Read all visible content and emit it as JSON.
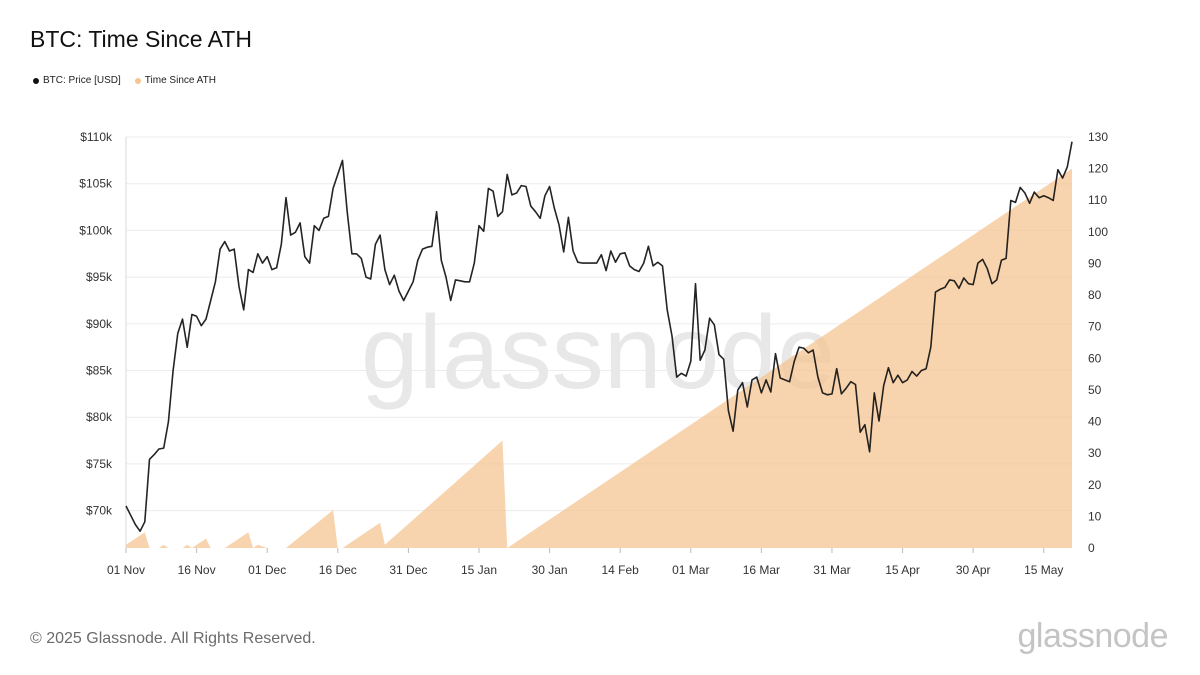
{
  "page": {
    "title": "BTC: Time Since ATH",
    "footer": "© 2025 Glassnode. All Rights Reserved.",
    "brand": "glassnode",
    "watermark": "glassnode"
  },
  "legend": [
    {
      "label": "BTC: Price [USD]",
      "color": "#111111"
    },
    {
      "label": "Time Since ATH",
      "color": "#f5c48f"
    }
  ],
  "chart_data": {
    "type": "line",
    "title": "BTC: Time Since ATH",
    "x_start": "2024-11-01",
    "x_end": "2025-05-21",
    "x_tick_labels": [
      "01 Nov",
      "16 Nov",
      "01 Dec",
      "16 Dec",
      "31 Dec",
      "15 Jan",
      "30 Jan",
      "14 Feb",
      "01 Mar",
      "16 Mar",
      "31 Mar",
      "15 Apr",
      "30 Apr",
      "15 May"
    ],
    "x_tick_dates": [
      "2024-11-01",
      "2024-11-16",
      "2024-12-01",
      "2024-12-16",
      "2024-12-31",
      "2025-01-15",
      "2025-01-30",
      "2025-02-14",
      "2025-03-01",
      "2025-03-16",
      "2025-03-31",
      "2025-04-15",
      "2025-04-30",
      "2025-05-15"
    ],
    "y_left": {
      "label": "",
      "min": 66000,
      "max": 110000,
      "ticks": [
        70000,
        75000,
        80000,
        85000,
        90000,
        95000,
        100000,
        105000,
        110000
      ],
      "tick_labels": [
        "$70k",
        "$75k",
        "$80k",
        "$85k",
        "$90k",
        "$95k",
        "$100k",
        "$105k",
        "$110k"
      ]
    },
    "y_right": {
      "label": "",
      "min": 0,
      "max": 130,
      "ticks": [
        0,
        10,
        20,
        30,
        40,
        50,
        60,
        70,
        80,
        90,
        100,
        110,
        120,
        130
      ],
      "tick_labels": [
        "0",
        "10",
        "20",
        "30",
        "40",
        "50",
        "60",
        "70",
        "80",
        "90",
        "100",
        "110",
        "120",
        "130"
      ]
    },
    "grid": true,
    "legend_position": "top-left",
    "series": [
      {
        "name": "BTC: Price [USD]",
        "axis": "left",
        "color": "#111111",
        "points": [
          [
            "2024-11-01",
            70500
          ],
          [
            "2024-11-02",
            69500
          ],
          [
            "2024-11-03",
            68500
          ],
          [
            "2024-11-04",
            67800
          ],
          [
            "2024-11-05",
            68800
          ],
          [
            "2024-11-06",
            75500
          ],
          [
            "2024-11-07",
            76000
          ],
          [
            "2024-11-08",
            76600
          ],
          [
            "2024-11-09",
            76700
          ],
          [
            "2024-11-10",
            79500
          ],
          [
            "2024-11-11",
            85000
          ],
          [
            "2024-11-12",
            89000
          ],
          [
            "2024-11-13",
            90500
          ],
          [
            "2024-11-14",
            87500
          ],
          [
            "2024-11-15",
            91000
          ],
          [
            "2024-11-16",
            90800
          ],
          [
            "2024-11-17",
            89800
          ],
          [
            "2024-11-18",
            90500
          ],
          [
            "2024-11-19",
            92500
          ],
          [
            "2024-11-20",
            94500
          ],
          [
            "2024-11-21",
            98000
          ],
          [
            "2024-11-22",
            98800
          ],
          [
            "2024-11-23",
            97800
          ],
          [
            "2024-11-24",
            98000
          ],
          [
            "2024-11-25",
            94000
          ],
          [
            "2024-11-26",
            91500
          ],
          [
            "2024-11-27",
            95800
          ],
          [
            "2024-11-28",
            95500
          ],
          [
            "2024-11-29",
            97500
          ],
          [
            "2024-11-30",
            96500
          ],
          [
            "2024-12-01",
            97200
          ],
          [
            "2024-12-02",
            95800
          ],
          [
            "2024-12-03",
            96000
          ],
          [
            "2024-12-04",
            98500
          ],
          [
            "2024-12-05",
            103500
          ],
          [
            "2024-12-06",
            99500
          ],
          [
            "2024-12-07",
            99800
          ],
          [
            "2024-12-08",
            100800
          ],
          [
            "2024-12-09",
            97200
          ],
          [
            "2024-12-10",
            96500
          ],
          [
            "2024-12-11",
            100500
          ],
          [
            "2024-12-12",
            100000
          ],
          [
            "2024-12-13",
            101300
          ],
          [
            "2024-12-14",
            101500
          ],
          [
            "2024-12-15",
            104500
          ],
          [
            "2024-12-16",
            106000
          ],
          [
            "2024-12-17",
            107500
          ],
          [
            "2024-12-18",
            102000
          ],
          [
            "2024-12-19",
            97500
          ],
          [
            "2024-12-20",
            97500
          ],
          [
            "2024-12-21",
            97000
          ],
          [
            "2024-12-22",
            95000
          ],
          [
            "2024-12-23",
            94800
          ],
          [
            "2024-12-24",
            98500
          ],
          [
            "2024-12-25",
            99500
          ],
          [
            "2024-12-26",
            95800
          ],
          [
            "2024-12-27",
            94200
          ],
          [
            "2024-12-28",
            95200
          ],
          [
            "2024-12-29",
            93500
          ],
          [
            "2024-12-30",
            92500
          ],
          [
            "2024-12-31",
            93500
          ],
          [
            "2025-01-01",
            94500
          ],
          [
            "2025-01-02",
            96800
          ],
          [
            "2025-01-03",
            98000
          ],
          [
            "2025-01-04",
            98200
          ],
          [
            "2025-01-05",
            98300
          ],
          [
            "2025-01-06",
            102000
          ],
          [
            "2025-01-07",
            96800
          ],
          [
            "2025-01-08",
            95000
          ],
          [
            "2025-01-09",
            92500
          ],
          [
            "2025-01-10",
            94700
          ],
          [
            "2025-01-11",
            94600
          ],
          [
            "2025-01-12",
            94500
          ],
          [
            "2025-01-13",
            94500
          ],
          [
            "2025-01-14",
            96500
          ],
          [
            "2025-01-15",
            100500
          ],
          [
            "2025-01-16",
            99900
          ],
          [
            "2025-01-17",
            104500
          ],
          [
            "2025-01-18",
            104200
          ],
          [
            "2025-01-19",
            101500
          ],
          [
            "2025-01-20",
            102000
          ],
          [
            "2025-01-21",
            106000
          ],
          [
            "2025-01-22",
            103800
          ],
          [
            "2025-01-23",
            104000
          ],
          [
            "2025-01-24",
            104800
          ],
          [
            "2025-01-25",
            104700
          ],
          [
            "2025-01-26",
            102600
          ],
          [
            "2025-01-27",
            102000
          ],
          [
            "2025-01-28",
            101300
          ],
          [
            "2025-01-29",
            103700
          ],
          [
            "2025-01-30",
            104700
          ],
          [
            "2025-01-31",
            102400
          ],
          [
            "2025-02-01",
            100600
          ],
          [
            "2025-02-02",
            97700
          ],
          [
            "2025-02-03",
            101400
          ],
          [
            "2025-02-04",
            97800
          ],
          [
            "2025-02-05",
            96600
          ],
          [
            "2025-02-06",
            96500
          ],
          [
            "2025-02-07",
            96500
          ],
          [
            "2025-02-08",
            96500
          ],
          [
            "2025-02-09",
            96500
          ],
          [
            "2025-02-10",
            97400
          ],
          [
            "2025-02-11",
            95700
          ],
          [
            "2025-02-12",
            97800
          ],
          [
            "2025-02-13",
            96600
          ],
          [
            "2025-02-14",
            97500
          ],
          [
            "2025-02-15",
            97600
          ],
          [
            "2025-02-16",
            96200
          ],
          [
            "2025-02-17",
            95800
          ],
          [
            "2025-02-18",
            95600
          ],
          [
            "2025-02-19",
            96500
          ],
          [
            "2025-02-20",
            98300
          ],
          [
            "2025-02-21",
            96200
          ],
          [
            "2025-02-22",
            96600
          ],
          [
            "2025-02-23",
            96200
          ],
          [
            "2025-02-24",
            91500
          ],
          [
            "2025-02-25",
            88700
          ],
          [
            "2025-02-26",
            84300
          ],
          [
            "2025-02-27",
            84700
          ],
          [
            "2025-02-28",
            84400
          ],
          [
            "2025-03-01",
            86000
          ],
          [
            "2025-03-02",
            94300
          ],
          [
            "2025-03-03",
            86100
          ],
          [
            "2025-03-04",
            87200
          ],
          [
            "2025-03-05",
            90600
          ],
          [
            "2025-03-06",
            89900
          ],
          [
            "2025-03-07",
            86700
          ],
          [
            "2025-03-08",
            86200
          ],
          [
            "2025-03-09",
            80700
          ],
          [
            "2025-03-10",
            78500
          ],
          [
            "2025-03-11",
            82900
          ],
          [
            "2025-03-12",
            83700
          ],
          [
            "2025-03-13",
            81100
          ],
          [
            "2025-03-14",
            84000
          ],
          [
            "2025-03-15",
            84300
          ],
          [
            "2025-03-16",
            82600
          ],
          [
            "2025-03-17",
            84000
          ],
          [
            "2025-03-18",
            82700
          ],
          [
            "2025-03-19",
            86800
          ],
          [
            "2025-03-20",
            84200
          ],
          [
            "2025-03-21",
            84000
          ],
          [
            "2025-03-22",
            83800
          ],
          [
            "2025-03-23",
            86000
          ],
          [
            "2025-03-24",
            87500
          ],
          [
            "2025-03-25",
            87400
          ],
          [
            "2025-03-26",
            86900
          ],
          [
            "2025-03-27",
            87200
          ],
          [
            "2025-03-28",
            84300
          ],
          [
            "2025-03-29",
            82600
          ],
          [
            "2025-03-30",
            82400
          ],
          [
            "2025-03-31",
            82500
          ],
          [
            "2025-04-01",
            85200
          ],
          [
            "2025-04-02",
            82500
          ],
          [
            "2025-04-03",
            83100
          ],
          [
            "2025-04-04",
            83800
          ],
          [
            "2025-04-05",
            83500
          ],
          [
            "2025-04-06",
            78400
          ],
          [
            "2025-04-07",
            79200
          ],
          [
            "2025-04-08",
            76300
          ],
          [
            "2025-04-09",
            82600
          ],
          [
            "2025-04-10",
            79600
          ],
          [
            "2025-04-11",
            83400
          ],
          [
            "2025-04-12",
            85300
          ],
          [
            "2025-04-13",
            83700
          ],
          [
            "2025-04-14",
            84500
          ],
          [
            "2025-04-15",
            83700
          ],
          [
            "2025-04-16",
            84000
          ],
          [
            "2025-04-17",
            84900
          ],
          [
            "2025-04-18",
            84400
          ],
          [
            "2025-04-19",
            85000
          ],
          [
            "2025-04-20",
            85200
          ],
          [
            "2025-04-21",
            87500
          ],
          [
            "2025-04-22",
            93400
          ],
          [
            "2025-04-23",
            93700
          ],
          [
            "2025-04-24",
            93900
          ],
          [
            "2025-04-25",
            94700
          ],
          [
            "2025-04-26",
            94600
          ],
          [
            "2025-04-27",
            93800
          ],
          [
            "2025-04-28",
            94900
          ],
          [
            "2025-04-29",
            94300
          ],
          [
            "2025-04-30",
            94200
          ],
          [
            "2025-05-01",
            96500
          ],
          [
            "2025-05-02",
            96900
          ],
          [
            "2025-05-03",
            95900
          ],
          [
            "2025-05-04",
            94300
          ],
          [
            "2025-05-05",
            94700
          ],
          [
            "2025-05-06",
            96800
          ],
          [
            "2025-05-07",
            97000
          ],
          [
            "2025-05-08",
            103200
          ],
          [
            "2025-05-09",
            103000
          ],
          [
            "2025-05-10",
            104600
          ],
          [
            "2025-05-11",
            104000
          ],
          [
            "2025-05-12",
            102900
          ],
          [
            "2025-05-13",
            104100
          ],
          [
            "2025-05-14",
            103500
          ],
          [
            "2025-05-15",
            103700
          ],
          [
            "2025-05-16",
            103500
          ],
          [
            "2025-05-17",
            103200
          ],
          [
            "2025-05-18",
            106500
          ],
          [
            "2025-05-19",
            105600
          ],
          [
            "2025-05-20",
            106800
          ],
          [
            "2025-05-21",
            109500
          ]
        ]
      },
      {
        "name": "Time Since ATH",
        "axis": "right",
        "color": "#f5c48f",
        "points": [
          [
            "2024-11-01",
            1
          ],
          [
            "2024-11-05",
            5
          ],
          [
            "2024-11-06",
            0
          ],
          [
            "2024-11-08",
            0
          ],
          [
            "2024-11-09",
            1
          ],
          [
            "2024-11-10",
            0
          ],
          [
            "2024-11-11",
            0
          ],
          [
            "2024-11-12",
            0
          ],
          [
            "2024-11-13",
            0
          ],
          [
            "2024-11-14",
            1
          ],
          [
            "2024-11-15",
            0
          ],
          [
            "2024-11-16",
            1
          ],
          [
            "2024-11-17",
            2
          ],
          [
            "2024-11-18",
            3
          ],
          [
            "2024-11-19",
            0
          ],
          [
            "2024-11-20",
            0
          ],
          [
            "2024-11-21",
            0
          ],
          [
            "2024-11-22",
            0
          ],
          [
            "2024-11-27",
            5
          ],
          [
            "2024-11-28",
            0
          ],
          [
            "2024-11-29",
            1
          ],
          [
            "2024-12-01",
            0
          ],
          [
            "2024-12-05",
            0
          ],
          [
            "2024-12-15",
            12
          ],
          [
            "2024-12-16",
            0
          ],
          [
            "2024-12-17",
            0
          ],
          [
            "2024-12-25",
            8
          ],
          [
            "2024-12-26",
            1
          ],
          [
            "2025-01-20",
            34
          ],
          [
            "2025-01-21",
            0
          ],
          [
            "2025-05-21",
            120
          ]
        ]
      }
    ]
  }
}
